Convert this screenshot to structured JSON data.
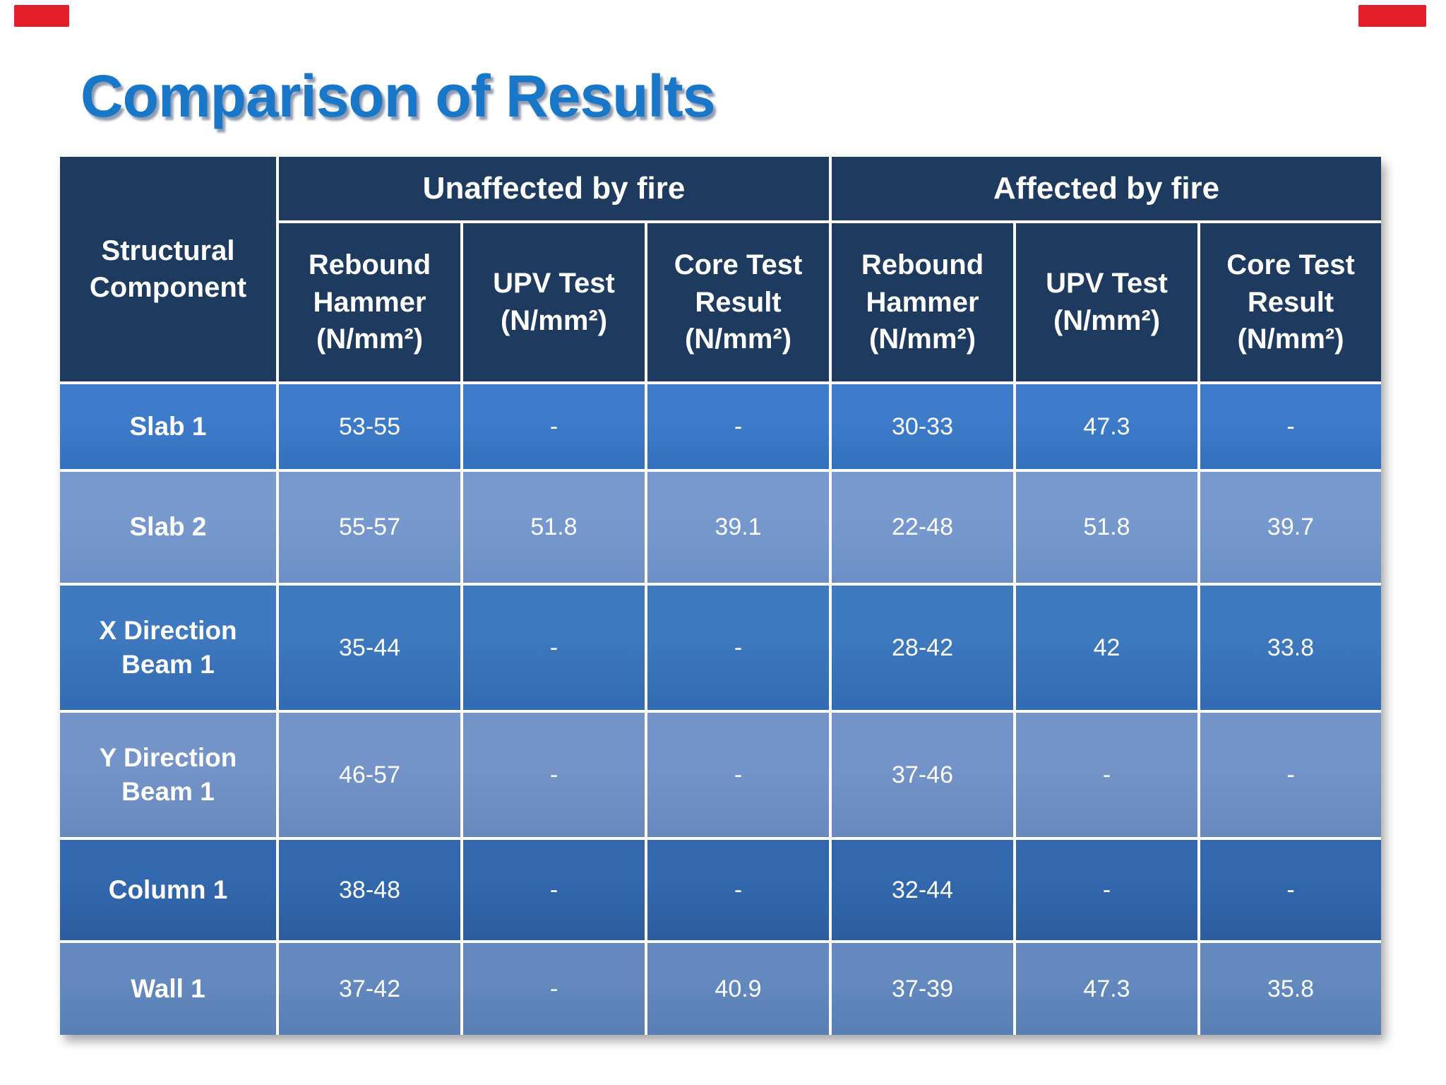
{
  "decorations": {
    "red_mark_color": "#E3202A"
  },
  "title": {
    "text": "Comparison of Results",
    "color": "#1877C8"
  },
  "table": {
    "corner_header": "Structural Component",
    "group_headers": [
      "Unaffected by fire",
      "Affected by fire"
    ],
    "column_headers": [
      "Rebound Hammer (N/mm²)",
      "UPV Test (N/mm²)",
      "Core Test Result (N/mm²)",
      "Rebound Hammer (N/mm²)",
      "UPV Test (N/mm²)",
      "Core Test Result (N/mm²)"
    ],
    "rows": [
      {
        "component": "Slab 1",
        "values": [
          "53-55",
          "-",
          "-",
          "30-33",
          "47.3",
          "-"
        ]
      },
      {
        "component": "Slab 2",
        "values": [
          "55-57",
          "51.8",
          "39.1",
          "22-48",
          "51.8",
          "39.7"
        ]
      },
      {
        "component": "X Direction Beam 1",
        "values": [
          "35-44",
          "-",
          "-",
          "28-42",
          "42",
          "33.8"
        ]
      },
      {
        "component": "Y Direction Beam 1",
        "values": [
          "46-57",
          "-",
          "-",
          "37-46",
          "-",
          "-"
        ]
      },
      {
        "component": "Column 1",
        "values": [
          "38-48",
          "-",
          "-",
          "32-44",
          "-",
          "-"
        ]
      },
      {
        "component": "Wall 1",
        "values": [
          "37-42",
          "-",
          "40.9",
          "37-39",
          "47.3",
          "35.8"
        ]
      }
    ],
    "colors": {
      "header_bg": "#1E3A5F",
      "grid_line": "#FFFFFF",
      "row_backgrounds": [
        [
          "#3E7CCB",
          "#3371BF"
        ],
        [
          "#7899CE",
          "#6C90C6"
        ],
        [
          "#3E78BE",
          "#326BB1"
        ],
        [
          "#7494C9",
          "#6889BE"
        ],
        [
          "#3368AE",
          "#2C5C9E"
        ],
        [
          "#6389BF",
          "#587FB5"
        ]
      ]
    }
  }
}
